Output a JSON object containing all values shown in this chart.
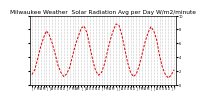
{
  "title": "Milwaukee Weather  Solar Radiation Avg per Day W/m2/minute",
  "title_fontsize": 4.2,
  "background_color": "#ffffff",
  "line_color": "#dd0000",
  "line_style": "--",
  "line_width": 0.7,
  "grid_color": "#999999",
  "grid_style": ":",
  "grid_linewidth": 0.4,
  "ylim": [
    0,
    10
  ],
  "ytick_positions": [
    0,
    2,
    4,
    6,
    8,
    10
  ],
  "ytick_labels": [
    "0",
    "2",
    "4",
    "6",
    "8",
    "10"
  ],
  "num_xticks": 50,
  "values": [
    1.5,
    2.2,
    3.8,
    5.5,
    6.8,
    7.8,
    7.2,
    6.0,
    4.5,
    2.8,
    1.8,
    1.2,
    1.6,
    2.5,
    4.2,
    5.8,
    7.0,
    8.2,
    8.5,
    7.5,
    5.5,
    3.5,
    2.0,
    1.4,
    1.8,
    3.0,
    4.8,
    6.5,
    7.8,
    8.8,
    8.6,
    7.2,
    5.2,
    3.2,
    1.8,
    1.2,
    1.6,
    2.8,
    4.5,
    6.2,
    7.5,
    8.4,
    7.8,
    6.5,
    4.2,
    2.5,
    1.5,
    1.0,
    1.4,
    2.2
  ],
  "x_tick_labels": [
    "J",
    "F",
    "M",
    "A",
    "M",
    "J",
    "J",
    "A",
    "S",
    "O",
    "N",
    "D",
    "J",
    "F",
    "M",
    "A",
    "M",
    "J",
    "J",
    "A",
    "S",
    "O",
    "N",
    "D",
    "J",
    "F",
    "M",
    "A",
    "M",
    "J",
    "J",
    "A",
    "S",
    "O",
    "N",
    "D",
    "J",
    "F",
    "M",
    "A",
    "M",
    "J",
    "J",
    "A",
    "S",
    "O",
    "N",
    "D",
    "J",
    "F"
  ]
}
